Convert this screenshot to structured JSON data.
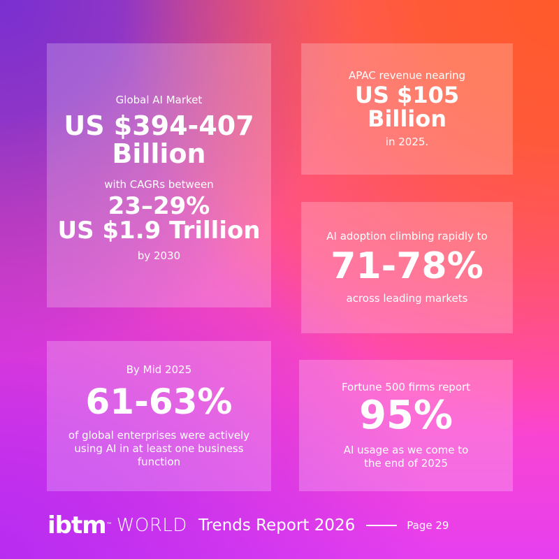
{
  "cards": {
    "global_market": {
      "title": "Global AI Market",
      "value_line1": "US $394-407",
      "value_line2": "Billion",
      "subtitle": "with CAGRs between",
      "cagr": "23–29%",
      "forecast": "US $1.9 Trillion",
      "forecast_year": "by 2030"
    },
    "apac": {
      "title": "APAC revenue nearing",
      "value_line1": "US $105",
      "value_line2": "Billion",
      "note": "in 2025."
    },
    "adoption": {
      "title": "AI adoption climbing rapidly to",
      "value": "71-78%",
      "note": "across leading markets"
    },
    "mid_2025": {
      "title": "By Mid 2025",
      "value": "61-63%",
      "note": "of global enterprises were actively using AI in at least one business function"
    },
    "fortune": {
      "title": "Fortune 500 firms report",
      "value": "95%",
      "note_line1": "AI usage as we come to",
      "note_line2": "the end of 2025"
    }
  },
  "footer": {
    "brand": "ibtm",
    "trademark": "™",
    "world": "WORLD",
    "report_title": "Trends Report 2026",
    "page_label": "Page 29"
  }
}
